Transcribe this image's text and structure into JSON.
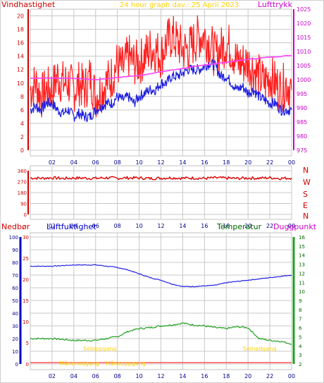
{
  "header": {
    "left_label": "Vindhastighet",
    "center_title": "24 hour graph dav.: 25 April 2023",
    "right_label": "Lufttrykk"
  },
  "lower_header": {
    "label_precip": "Nedbør",
    "label_humidity": "Luftfuktighet",
    "label_temperature": "Temperatur",
    "label_dewpoint": "Duggpunkt"
  },
  "annotations": {
    "sunrise": "Soloppgang",
    "sunset": "Solnedgang",
    "moonset": "Månenedgang",
    "moonrise": "Måneoppgang"
  },
  "colors": {
    "wind_gust": "#ff2020",
    "wind_avg": "#2020e0",
    "pressure": "#ff40ff",
    "direction": "#dd0000",
    "humidity": "#2020e0",
    "temperature": "#20a020",
    "dewpoint": "#ff40ff",
    "precip": "#ff6060",
    "grid": "#c8c8c8",
    "frame": "#c0c0c0",
    "label_left": "#cc0000",
    "label_center": "#ffd000",
    "label_right_purple": "#cc00cc",
    "label_green": "#006600",
    "label_blue": "#0000cc",
    "annotation": "#ffd000"
  },
  "chart_data": [
    {
      "name": "wind-and-pressure",
      "type": "line",
      "x_ticks": [
        "02",
        "04",
        "06",
        "08",
        "10",
        "12",
        "14",
        "16",
        "18",
        "20",
        "22",
        "00"
      ],
      "y_left_ticks": [
        "0",
        "2",
        "4",
        "6",
        "8",
        "10",
        "12",
        "14",
        "16",
        "18",
        "20"
      ],
      "y_left_range": [
        0,
        21
      ],
      "y_right_ticks": [
        "975",
        "980",
        "985",
        "990",
        "995",
        "1000",
        "1005",
        "1010",
        "1015",
        "1020",
        "1025"
      ],
      "y_right_range": [
        975,
        1025
      ],
      "series": [
        {
          "name": "Vindkast",
          "hours": [
            0,
            0.5,
            1,
            1.5,
            2,
            2.5,
            3,
            3.5,
            4,
            4.5,
            5,
            5.5,
            6,
            6.5,
            7,
            7.5,
            8,
            8.5,
            9,
            9.5,
            10,
            10.5,
            11,
            11.5,
            12,
            12.5,
            13,
            13.5,
            14,
            14.5,
            15,
            15.5,
            16,
            16.5,
            17,
            17.5,
            18,
            18.5,
            19,
            19.5,
            20,
            20.5,
            21,
            21.5,
            22,
            22.5,
            23,
            23.5,
            24
          ],
          "values": [
            9,
            10,
            8,
            9,
            9,
            11,
            10,
            10,
            9,
            10,
            9,
            11,
            8,
            9,
            10,
            11,
            13,
            12,
            14,
            13,
            13,
            14,
            15,
            15,
            14,
            16,
            17,
            16,
            15,
            15,
            16,
            17,
            17,
            16,
            14,
            15,
            16,
            15,
            13,
            13,
            13,
            12,
            11,
            10,
            11,
            10,
            9,
            10,
            9
          ]
        },
        {
          "name": "Vindhastighet",
          "hours": [
            0,
            0.5,
            1,
            1.5,
            2,
            2.5,
            3,
            3.5,
            4,
            4.5,
            5,
            5.5,
            6,
            6.5,
            7,
            7.5,
            8,
            8.5,
            9,
            9.5,
            10,
            10.5,
            11,
            11.5,
            12,
            12.5,
            13,
            13.5,
            14,
            14.5,
            15,
            15.5,
            16,
            16.5,
            17,
            17.5,
            18,
            18.5,
            19,
            19.5,
            20,
            20.5,
            21,
            21.5,
            22,
            22.5,
            23,
            23.5,
            24
          ],
          "values": [
            6,
            6.5,
            6,
            7,
            7,
            6,
            5.5,
            6,
            5,
            5.5,
            5,
            5,
            6,
            6.5,
            7,
            7,
            8,
            7.5,
            8,
            7,
            8,
            8.5,
            9,
            9,
            10,
            10,
            11,
            11,
            11.5,
            12,
            12,
            12,
            12.5,
            13,
            12.5,
            11,
            11,
            10,
            9,
            9.5,
            8.5,
            9,
            8,
            7.5,
            7,
            7,
            6,
            6,
            6
          ]
        },
        {
          "name": "Lufttrykk",
          "hours": [
            0,
            2,
            4,
            6,
            8,
            10,
            12,
            14,
            16,
            18,
            20,
            22,
            24
          ],
          "values": [
            1000.5,
            1000.6,
            1000.5,
            1000.0,
            1000.8,
            1001.5,
            1002.8,
            1004.0,
            1005.2,
            1006.2,
            1007.2,
            1008.0,
            1008.6
          ]
        }
      ]
    },
    {
      "name": "wind-direction",
      "type": "line",
      "x_ticks": [
        "02",
        "04",
        "06",
        "08",
        "10",
        "12",
        "14",
        "16",
        "18",
        "20",
        "22",
        "00"
      ],
      "y_left_ticks": [
        "0",
        "90",
        "180",
        "270",
        "360"
      ],
      "y_left_range": [
        0,
        360
      ],
      "y_right_ticks": [
        "N",
        "W",
        "S",
        "E",
        "N"
      ],
      "series": [
        {
          "name": "Vindretning",
          "hours": [
            0,
            1,
            2,
            3,
            4,
            5,
            6,
            7,
            8,
            9,
            10,
            11,
            12,
            13,
            14,
            15,
            16,
            17,
            18,
            19,
            20,
            21,
            22,
            23,
            24
          ],
          "values": [
            300,
            298,
            302,
            296,
            300,
            299,
            297,
            302,
            298,
            301,
            300,
            296,
            299,
            302,
            298,
            300,
            297,
            301,
            299,
            296,
            300,
            298,
            302,
            297,
            300
          ]
        }
      ]
    },
    {
      "name": "humidity-temperature",
      "type": "line",
      "x_ticks": [
        "02",
        "04",
        "06",
        "08",
        "10",
        "12",
        "14",
        "16",
        "18",
        "20",
        "22",
        "00"
      ],
      "y_precip_ticks": [
        "0",
        "10",
        "20",
        "30",
        "40",
        "50",
        "60",
        "70",
        "80",
        "90",
        "100"
      ],
      "y_humidity_ticks": [
        "0",
        "5",
        "10",
        "15",
        "20",
        "25",
        "30"
      ],
      "y_humidity_range": [
        0,
        30
      ],
      "y_temp_ticks": [
        "2",
        "3",
        "4",
        "5",
        "6",
        "7",
        "8",
        "9",
        "10",
        "11",
        "12",
        "13",
        "14",
        "15",
        "16"
      ],
      "y_temp_range": [
        2,
        16
      ],
      "series": [
        {
          "name": "Luftfuktighet",
          "hours": [
            0,
            1,
            2,
            3,
            4,
            5,
            6,
            7,
            8,
            9,
            10,
            11,
            12,
            13,
            14,
            15,
            16,
            17,
            18,
            19,
            20,
            21,
            22,
            23,
            24
          ],
          "values": [
            77,
            77,
            77,
            77.5,
            78,
            78,
            78,
            77,
            76,
            74,
            71,
            68,
            66,
            63,
            61,
            61,
            61.5,
            62,
            64,
            65,
            66,
            67,
            68,
            69,
            70
          ]
        },
        {
          "name": "Temperatur",
          "hours": [
            0,
            1,
            2,
            3,
            4,
            5,
            6,
            7,
            8,
            9,
            10,
            11,
            12,
            13,
            14,
            15,
            16,
            17,
            18,
            19,
            20,
            21,
            22,
            23,
            24
          ],
          "values": [
            4.8,
            4.8,
            4.8,
            4.7,
            4.6,
            4.6,
            4.6,
            4.8,
            5.0,
            5.6,
            5.9,
            6.0,
            6.2,
            6.3,
            6.5,
            6.3,
            6.2,
            6.0,
            5.9,
            6.1,
            6.0,
            4.8,
            4.6,
            4.5,
            4.2
          ]
        },
        {
          "name": "Nedbør",
          "hours": [
            0,
            24
          ],
          "values": [
            1,
            1
          ]
        }
      ]
    }
  ]
}
